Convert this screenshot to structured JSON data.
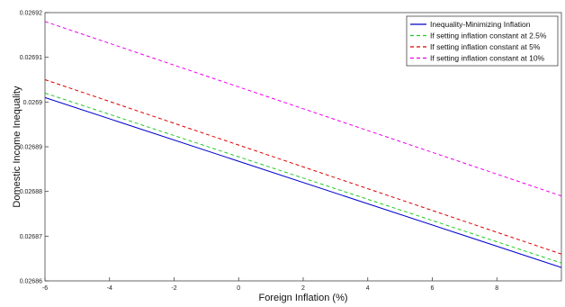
{
  "chart_data": {
    "type": "line",
    "xlabel": "Foreign Inflation (%)",
    "ylabel": "Domestic Income Inequality",
    "xlim": [
      -6,
      10
    ],
    "ylim": [
      0.02686,
      0.02692
    ],
    "x_ticks": [
      -6,
      -4,
      -2,
      0,
      2,
      4,
      6,
      8
    ],
    "x_tick_labels": [
      "-6",
      "-4",
      "-2",
      "0",
      "2",
      "4",
      "6",
      "8"
    ],
    "y_ticks": [
      0.02686,
      0.02687,
      0.02688,
      0.02689,
      0.0269,
      0.02691,
      0.02692
    ],
    "y_tick_labels": [
      "0.02686",
      "0.02687",
      "0.02688",
      "0.02689",
      "0.0269",
      "0.02691",
      "0.02692"
    ],
    "grid": false,
    "legend_position": "top-right",
    "series": [
      {
        "name": "Inequality-Minimizing Inflation",
        "color": "#0000cc",
        "dash": "solid",
        "x": [
          -6,
          10
        ],
        "y": [
          0.026901,
          0.026863
        ]
      },
      {
        "name": "If setting inflation constant at 2.5%",
        "color": "#22cc22",
        "dash": "dashed",
        "x": [
          -6,
          10
        ],
        "y": [
          0.026902,
          0.026864
        ]
      },
      {
        "name": "If setting inflation constant at 5%",
        "color": "#dd0000",
        "dash": "dashed",
        "x": [
          -6,
          10
        ],
        "y": [
          0.026905,
          0.026866
        ]
      },
      {
        "name": "If setting inflation constant at 10%",
        "color": "#ee00ee",
        "dash": "dashed",
        "x": [
          -6,
          10
        ],
        "y": [
          0.026918,
          0.026879
        ]
      }
    ]
  }
}
